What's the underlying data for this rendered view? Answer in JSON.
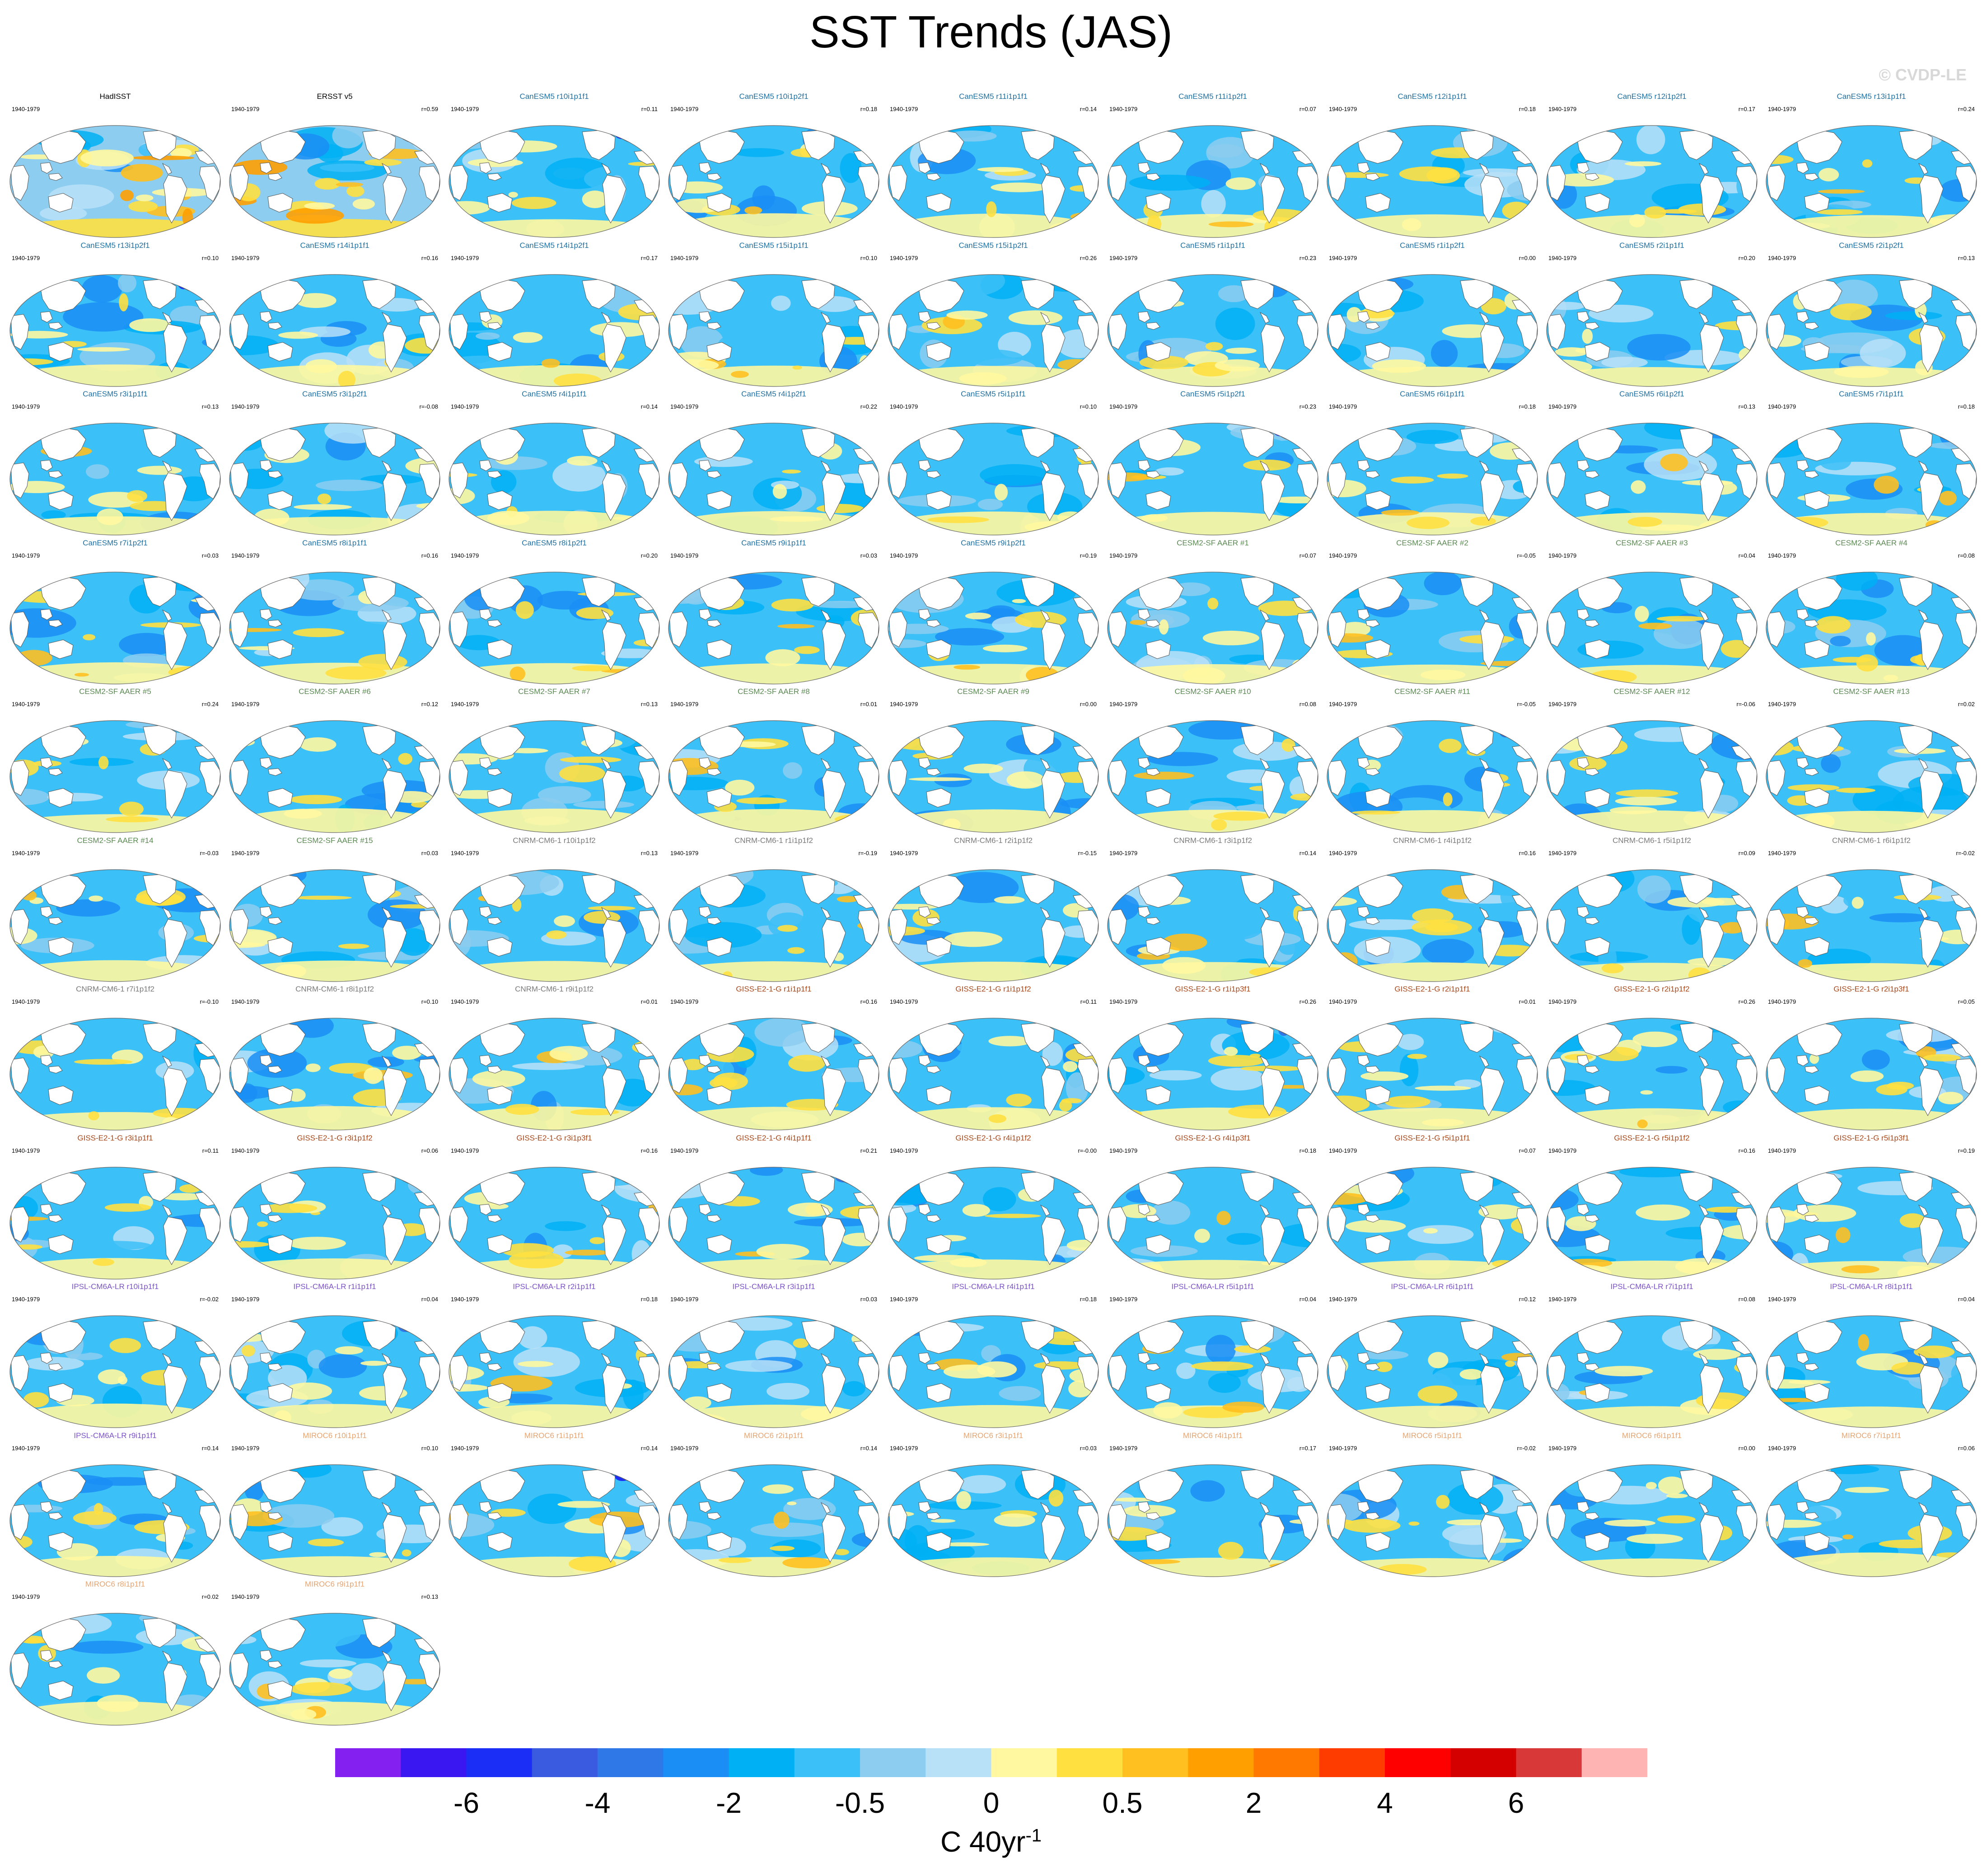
{
  "title": "SST Trends (JAS)",
  "watermark": "© CVDP-LE",
  "chart_data": {
    "type": "heatmap",
    "title": "SST Trends (JAS)",
    "period": "1940-1979",
    "units_base": "C 40yr",
    "units_exponent": "-1",
    "colorbar": {
      "colors": [
        "#8421f0",
        "#3a16f0",
        "#1a2ef5",
        "#3a5ae0",
        "#2f78e8",
        "#1a8ef5",
        "#00b0f5",
        "#3cc0f8",
        "#8ccdf0",
        "#b8e1f8",
        "#fff8a0",
        "#ffe040",
        "#ffc020",
        "#ffa000",
        "#ff7800",
        "#ff3c00",
        "#ff0000",
        "#d40000",
        "#d83838",
        "#ffb4b4"
      ],
      "tick_labels": [
        "-6",
        "-4",
        "-2",
        "-0.5",
        "0",
        "0.5",
        "2",
        "4",
        "6"
      ]
    },
    "panels": [
      {
        "label": "HadISST",
        "r": "",
        "group": "obs"
      },
      {
        "label": "ERSST v5",
        "r": "r=0.59",
        "group": "obs"
      },
      {
        "label": "CanESM5 r10i1p1f1",
        "r": "r=0.11",
        "group": "CanESM5"
      },
      {
        "label": "CanESM5 r10i1p2f1",
        "r": "r=0.18",
        "group": "CanESM5"
      },
      {
        "label": "CanESM5 r11i1p1f1",
        "r": "r=0.14",
        "group": "CanESM5"
      },
      {
        "label": "CanESM5 r11i1p2f1",
        "r": "r=0.07",
        "group": "CanESM5"
      },
      {
        "label": "CanESM5 r12i1p1f1",
        "r": "r=0.18",
        "group": "CanESM5"
      },
      {
        "label": "CanESM5 r12i1p2f1",
        "r": "r=0.17",
        "group": "CanESM5"
      },
      {
        "label": "CanESM5 r13i1p1f1",
        "r": "r=0.24",
        "group": "CanESM5"
      },
      {
        "label": "CanESM5 r13i1p2f1",
        "r": "r=0.10",
        "group": "CanESM5"
      },
      {
        "label": "CanESM5 r14i1p1f1",
        "r": "r=0.16",
        "group": "CanESM5"
      },
      {
        "label": "CanESM5 r14i1p2f1",
        "r": "r=0.17",
        "group": "CanESM5"
      },
      {
        "label": "CanESM5 r15i1p1f1",
        "r": "r=0.10",
        "group": "CanESM5"
      },
      {
        "label": "CanESM5 r15i1p2f1",
        "r": "r=0.26",
        "group": "CanESM5"
      },
      {
        "label": "CanESM5 r1i1p1f1",
        "r": "r=0.23",
        "group": "CanESM5"
      },
      {
        "label": "CanESM5 r1i1p2f1",
        "r": "r=0.00",
        "group": "CanESM5"
      },
      {
        "label": "CanESM5 r2i1p1f1",
        "r": "r=0.20",
        "group": "CanESM5"
      },
      {
        "label": "CanESM5 r2i1p2f1",
        "r": "r=0.13",
        "group": "CanESM5"
      },
      {
        "label": "CanESM5 r3i1p1f1",
        "r": "r=0.13",
        "group": "CanESM5"
      },
      {
        "label": "CanESM5 r3i1p2f1",
        "r": "r=-0.08",
        "group": "CanESM5"
      },
      {
        "label": "CanESM5 r4i1p1f1",
        "r": "r=0.14",
        "group": "CanESM5"
      },
      {
        "label": "CanESM5 r4i1p2f1",
        "r": "r=0.22",
        "group": "CanESM5"
      },
      {
        "label": "CanESM5 r5i1p1f1",
        "r": "r=0.10",
        "group": "CanESM5"
      },
      {
        "label": "CanESM5 r5i1p2f1",
        "r": "r=0.23",
        "group": "CanESM5"
      },
      {
        "label": "CanESM5 r6i1p1f1",
        "r": "r=0.18",
        "group": "CanESM5"
      },
      {
        "label": "CanESM5 r6i1p2f1",
        "r": "r=0.13",
        "group": "CanESM5"
      },
      {
        "label": "CanESM5 r7i1p1f1",
        "r": "r=0.18",
        "group": "CanESM5"
      },
      {
        "label": "CanESM5 r7i1p2f1",
        "r": "r=0.03",
        "group": "CanESM5"
      },
      {
        "label": "CanESM5 r8i1p1f1",
        "r": "r=0.16",
        "group": "CanESM5"
      },
      {
        "label": "CanESM5 r8i1p2f1",
        "r": "r=0.20",
        "group": "CanESM5"
      },
      {
        "label": "CanESM5 r9i1p1f1",
        "r": "r=0.03",
        "group": "CanESM5"
      },
      {
        "label": "CanESM5 r9i1p2f1",
        "r": "r=0.19",
        "group": "CanESM5"
      },
      {
        "label": "CESM2-SF AAER #1",
        "r": "r=0.07",
        "group": "CESM2"
      },
      {
        "label": "CESM2-SF AAER #2",
        "r": "r=-0.05",
        "group": "CESM2"
      },
      {
        "label": "CESM2-SF AAER #3",
        "r": "r=0.04",
        "group": "CESM2"
      },
      {
        "label": "CESM2-SF AAER #4",
        "r": "r=0.08",
        "group": "CESM2"
      },
      {
        "label": "CESM2-SF AAER #5",
        "r": "r=0.24",
        "group": "CESM2"
      },
      {
        "label": "CESM2-SF AAER #6",
        "r": "r=0.12",
        "group": "CESM2"
      },
      {
        "label": "CESM2-SF AAER #7",
        "r": "r=0.13",
        "group": "CESM2"
      },
      {
        "label": "CESM2-SF AAER #8",
        "r": "r=0.01",
        "group": "CESM2"
      },
      {
        "label": "CESM2-SF AAER #9",
        "r": "r=0.00",
        "group": "CESM2"
      },
      {
        "label": "CESM2-SF AAER #10",
        "r": "r=0.08",
        "group": "CESM2"
      },
      {
        "label": "CESM2-SF AAER #11",
        "r": "r=-0.05",
        "group": "CESM2"
      },
      {
        "label": "CESM2-SF AAER #12",
        "r": "r=-0.06",
        "group": "CESM2"
      },
      {
        "label": "CESM2-SF AAER #13",
        "r": "r=0.02",
        "group": "CESM2"
      },
      {
        "label": "CESM2-SF AAER #14",
        "r": "r=-0.03",
        "group": "CESM2"
      },
      {
        "label": "CESM2-SF AAER #15",
        "r": "r=0.03",
        "group": "CESM2"
      },
      {
        "label": "CNRM-CM6-1 r10i1p1f2",
        "r": "r=0.13",
        "group": "CNRM"
      },
      {
        "label": "CNRM-CM6-1 r1i1p1f2",
        "r": "r=-0.19",
        "group": "CNRM"
      },
      {
        "label": "CNRM-CM6-1 r2i1p1f2",
        "r": "r=-0.15",
        "group": "CNRM"
      },
      {
        "label": "CNRM-CM6-1 r3i1p1f2",
        "r": "r=0.14",
        "group": "CNRM"
      },
      {
        "label": "CNRM-CM6-1 r4i1p1f2",
        "r": "r=0.16",
        "group": "CNRM"
      },
      {
        "label": "CNRM-CM6-1 r5i1p1f2",
        "r": "r=0.09",
        "group": "CNRM"
      },
      {
        "label": "CNRM-CM6-1 r6i1p1f2",
        "r": "r=-0.02",
        "group": "CNRM"
      },
      {
        "label": "CNRM-CM6-1 r7i1p1f2",
        "r": "r=-0.10",
        "group": "CNRM"
      },
      {
        "label": "CNRM-CM6-1 r8i1p1f2",
        "r": "r=0.10",
        "group": "CNRM"
      },
      {
        "label": "CNRM-CM6-1 r9i1p1f2",
        "r": "r=0.01",
        "group": "CNRM"
      },
      {
        "label": "GISS-E2-1-G r1i1p1f1",
        "r": "r=0.16",
        "group": "GISS"
      },
      {
        "label": "GISS-E2-1-G r1i1p1f2",
        "r": "r=0.11",
        "group": "GISS"
      },
      {
        "label": "GISS-E2-1-G r1i1p3f1",
        "r": "r=0.26",
        "group": "GISS"
      },
      {
        "label": "GISS-E2-1-G r2i1p1f1",
        "r": "r=0.01",
        "group": "GISS"
      },
      {
        "label": "GISS-E2-1-G r2i1p1f2",
        "r": "r=0.26",
        "group": "GISS"
      },
      {
        "label": "GISS-E2-1-G r2i1p3f1",
        "r": "r=0.05",
        "group": "GISS"
      },
      {
        "label": "GISS-E2-1-G r3i1p1f1",
        "r": "r=0.11",
        "group": "GISS"
      },
      {
        "label": "GISS-E2-1-G r3i1p1f2",
        "r": "r=0.06",
        "group": "GISS"
      },
      {
        "label": "GISS-E2-1-G r3i1p3f1",
        "r": "r=0.16",
        "group": "GISS"
      },
      {
        "label": "GISS-E2-1-G r4i1p1f1",
        "r": "r=0.21",
        "group": "GISS"
      },
      {
        "label": "GISS-E2-1-G r4i1p1f2",
        "r": "r=-0.00",
        "group": "GISS"
      },
      {
        "label": "GISS-E2-1-G r4i1p3f1",
        "r": "r=0.18",
        "group": "GISS"
      },
      {
        "label": "GISS-E2-1-G r5i1p1f1",
        "r": "r=0.07",
        "group": "GISS"
      },
      {
        "label": "GISS-E2-1-G r5i1p1f2",
        "r": "r=0.16",
        "group": "GISS"
      },
      {
        "label": "GISS-E2-1-G r5i1p3f1",
        "r": "r=0.19",
        "group": "GISS"
      },
      {
        "label": "IPSL-CM6A-LR r10i1p1f1",
        "r": "r=-0.02",
        "group": "IPSL"
      },
      {
        "label": "IPSL-CM6A-LR r1i1p1f1",
        "r": "r=0.04",
        "group": "IPSL"
      },
      {
        "label": "IPSL-CM6A-LR r2i1p1f1",
        "r": "r=0.18",
        "group": "IPSL"
      },
      {
        "label": "IPSL-CM6A-LR r3i1p1f1",
        "r": "r=0.03",
        "group": "IPSL"
      },
      {
        "label": "IPSL-CM6A-LR r4i1p1f1",
        "r": "r=0.18",
        "group": "IPSL"
      },
      {
        "label": "IPSL-CM6A-LR r5i1p1f1",
        "r": "r=0.04",
        "group": "IPSL"
      },
      {
        "label": "IPSL-CM6A-LR r6i1p1f1",
        "r": "r=0.12",
        "group": "IPSL"
      },
      {
        "label": "IPSL-CM6A-LR r7i1p1f1",
        "r": "r=0.08",
        "group": "IPSL"
      },
      {
        "label": "IPSL-CM6A-LR r8i1p1f1",
        "r": "r=0.04",
        "group": "IPSL"
      },
      {
        "label": "IPSL-CM6A-LR r9i1p1f1",
        "r": "r=0.14",
        "group": "IPSL"
      },
      {
        "label": "MIROC6 r10i1p1f1",
        "r": "r=0.10",
        "group": "MIROC6"
      },
      {
        "label": "MIROC6 r1i1p1f1",
        "r": "r=0.14",
        "group": "MIROC6"
      },
      {
        "label": "MIROC6 r2i1p1f1",
        "r": "r=0.14",
        "group": "MIROC6"
      },
      {
        "label": "MIROC6 r3i1p1f1",
        "r": "r=0.03",
        "group": "MIROC6"
      },
      {
        "label": "MIROC6 r4i1p1f1",
        "r": "r=0.17",
        "group": "MIROC6"
      },
      {
        "label": "MIROC6 r5i1p1f1",
        "r": "r=-0.02",
        "group": "MIROC6"
      },
      {
        "label": "MIROC6 r6i1p1f1",
        "r": "r=0.00",
        "group": "MIROC6"
      },
      {
        "label": "MIROC6 r7i1p1f1",
        "r": "r=0.06",
        "group": "MIROC6"
      },
      {
        "label": "MIROC6 r8i1p1f1",
        "r": "r=0.02",
        "group": "MIROC6"
      },
      {
        "label": "MIROC6 r9i1p1f1",
        "r": "r=0.13",
        "group": "MIROC6"
      }
    ],
    "group_label_colors": {
      "obs": "#000000",
      "CanESM5": "#1f6fa0",
      "CESM2": "#5a8a52",
      "CNRM": "#7a7a7a",
      "GISS": "#a8481a",
      "IPSL": "#7b52c8",
      "MIROC6": "#e8a46e"
    }
  }
}
